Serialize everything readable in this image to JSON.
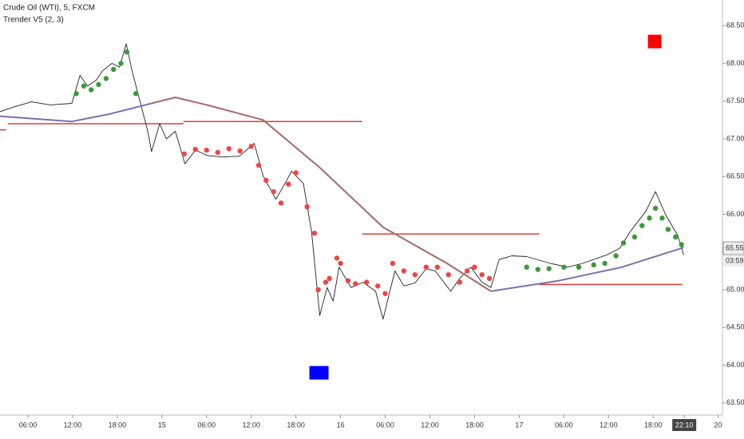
{
  "chart_data": {
    "type": "line",
    "title": "Crude Oil (WTI), 5, FXCM",
    "subtitle": "Trender V5 (2, 3)",
    "xlim": [
      2.25,
      99.3
    ],
    "ylim": [
      63.34,
      68.84
    ],
    "yticks": [
      {
        "value": 63.5,
        "label": "63.50"
      },
      {
        "value": 64,
        "label": "64.00"
      },
      {
        "value": 64.5,
        "label": "64.50"
      },
      {
        "value": 65,
        "label": "65.00"
      },
      {
        "value": 65.5,
        "label": "65.50"
      },
      {
        "value": 66,
        "label": "66.00"
      },
      {
        "value": 66.5,
        "label": "66.50"
      },
      {
        "value": 67,
        "label": "67.00"
      },
      {
        "value": 67.5,
        "label": "67.50"
      },
      {
        "value": 68,
        "label": "68.00"
      },
      {
        "value": 68.5,
        "label": "68.50"
      }
    ],
    "xticks": [
      {
        "value": 6,
        "label": "06:00"
      },
      {
        "value": 12,
        "label": "12:00"
      },
      {
        "value": 18,
        "label": "18:00"
      },
      {
        "value": 24,
        "label": "15"
      },
      {
        "value": 30,
        "label": "06:00"
      },
      {
        "value": 36,
        "label": "12:00"
      },
      {
        "value": 42,
        "label": "18:00"
      },
      {
        "value": 48,
        "label": "16"
      },
      {
        "value": 54,
        "label": "06:00"
      },
      {
        "value": 60,
        "label": "12:00"
      },
      {
        "value": 66,
        "label": "18:00"
      },
      {
        "value": 72,
        "label": "17"
      },
      {
        "value": 78,
        "label": "06:00"
      },
      {
        "value": 84,
        "label": "12:00"
      },
      {
        "value": 90,
        "label": "18:00"
      },
      {
        "value": 94.17,
        "label": "22:10"
      },
      {
        "value": 98.7,
        "label": "20"
      }
    ],
    "series": [
      {
        "color": "#222222",
        "x": [
          2.25,
          4,
          6.5,
          9,
          11.9,
          13,
          14,
          15.2,
          16,
          17.3,
          18.3,
          19.2,
          20,
          21,
          22.1,
          22.6,
          23.7,
          24.6,
          25.8,
          27.1,
          28.5,
          30.1,
          32,
          34.4,
          36.4,
          37.6,
          39.3,
          40.5,
          41.4,
          43,
          44.1,
          45.2,
          46.2,
          47,
          47.8,
          49.4,
          51,
          52.7,
          53.7,
          55.3,
          56.5,
          58,
          59.5,
          60.7,
          62.8,
          64,
          65.5,
          67,
          68.2,
          69.3,
          71,
          73,
          76.2,
          78.5,
          80.5,
          83.7,
          85.5,
          86.9,
          89,
          90.3,
          91.7,
          93.3,
          94.1
        ],
        "values": [
          67.36,
          67.42,
          67.49,
          67.45,
          67.47,
          67.84,
          67.7,
          67.78,
          67.9,
          68.0,
          67.95,
          68.26,
          67.9,
          67.52,
          67.1,
          66.83,
          67.2,
          67.0,
          67.1,
          66.67,
          66.85,
          66.78,
          66.76,
          66.77,
          66.94,
          66.51,
          66.2,
          66.4,
          66.57,
          66.41,
          65.77,
          64.66,
          65.03,
          64.85,
          65.3,
          65.03,
          65.1,
          64.98,
          64.61,
          65.25,
          65.05,
          65.09,
          65.28,
          65.25,
          64.98,
          65.15,
          65.3,
          65.1,
          65.03,
          65.4,
          65.45,
          65.44,
          65.35,
          65.3,
          65.35,
          65.46,
          65.55,
          65.77,
          66.04,
          66.3,
          65.99,
          65.72,
          65.46
        ]
      },
      {
        "color": "#7b6fb0",
        "x": [
          2.25,
          11.9,
          17,
          22.6
        ],
        "values": [
          67.3,
          67.23,
          67.33,
          67.47
        ]
      },
      {
        "color": "#a8696b",
        "x": [
          22.6,
          25.8,
          30,
          37.6,
          45.2,
          53.7,
          62.3,
          68.2
        ],
        "values": [
          67.47,
          67.55,
          67.45,
          67.25,
          66.62,
          65.83,
          65.35,
          64.98
        ]
      },
      {
        "color": "#7b6fb0",
        "x": [
          68.2,
          77.3,
          85.8,
          94.1
        ],
        "values": [
          64.98,
          65.12,
          65.3,
          65.56
        ]
      }
    ],
    "dot_series": [
      {
        "color": "#3a9a3a",
        "x": [
          12.5,
          13.5,
          14.5,
          15.5,
          16.5,
          17.5,
          18.5,
          19.3,
          20.5,
          73,
          74.5,
          76,
          78,
          80,
          82,
          83.5,
          85,
          86,
          87.5,
          88.5,
          89.5,
          90.3,
          91.2,
          92,
          93,
          93.8
        ],
        "values": [
          67.6,
          67.7,
          67.65,
          67.72,
          67.8,
          67.92,
          68.0,
          68.15,
          67.6,
          65.3,
          65.27,
          65.28,
          65.3,
          65.3,
          65.33,
          65.35,
          65.45,
          65.62,
          65.7,
          65.85,
          65.95,
          66.08,
          65.95,
          65.8,
          65.7,
          65.6
        ]
      },
      {
        "color": "#ef4444",
        "x": [
          27,
          28.5,
          30,
          31.5,
          33,
          34.5,
          36,
          37,
          38,
          39,
          40,
          41,
          42,
          43.5,
          44.5,
          45,
          46,
          46.5,
          47.5,
          48,
          49,
          50,
          51.5,
          53,
          54,
          55,
          56.5,
          58,
          59.5,
          61,
          62.5,
          64,
          65,
          66,
          67,
          68
        ],
        "values": [
          66.8,
          66.86,
          66.85,
          66.82,
          66.87,
          66.84,
          66.9,
          66.65,
          66.45,
          66.3,
          66.15,
          66.4,
          66.55,
          66.1,
          65.75,
          65.0,
          65.1,
          65.15,
          65.42,
          65.35,
          65.12,
          65.08,
          65.1,
          65.05,
          64.95,
          65.35,
          65.25,
          65.2,
          65.3,
          65.3,
          65.2,
          65.1,
          65.25,
          65.3,
          65.2,
          65.15
        ]
      }
    ],
    "levels": [
      {
        "color": "#e53935",
        "from": 2.25,
        "to": 3.1,
        "value": 67.12
      },
      {
        "color": "#e53935",
        "from": 3.3,
        "to": 26.9,
        "value": 67.2
      },
      {
        "color": "#e53935",
        "from": 26.9,
        "to": 50.9,
        "value": 67.23
      },
      {
        "color": "#e53935",
        "from": 50.9,
        "to": 74.7,
        "value": 65.74
      },
      {
        "color": "#e53935",
        "from": 74.7,
        "to": 93.9,
        "value": 65.07
      }
    ],
    "markers": [
      {
        "color": "#ff0000",
        "x": 90.2,
        "y": 68.29
      },
      {
        "color": "#0000ff",
        "x": 45.1,
        "y": 63.9
      }
    ],
    "last_price": {
      "value": 65.55,
      "label": "65.55"
    },
    "countdown": "03:59"
  }
}
